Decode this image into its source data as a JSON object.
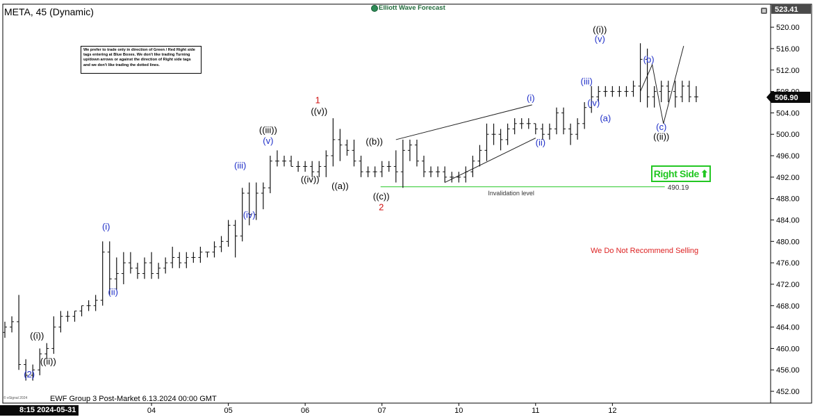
{
  "header": {
    "title": "META, 45 (Dynamic)",
    "brand": "Elliott Wave Forecast"
  },
  "notice": {
    "text": "We prefer to trade only in direction of Green / Red Right side tags entering at Blue Boxes. We don't like trading Turning up/down arrows or against the direction of Right side tags and we don't like trading the dotted lines."
  },
  "badges": {
    "right_side": "Right Side",
    "right_side_color": "#22c722",
    "no_sell": "We Do Not Recommend Selling",
    "no_sell_color": "#dd2222"
  },
  "footer": {
    "caption": "EWF Group 3 Post-Market 6.13.2024 00:00 GMT",
    "copyright": "© eSignal 2024",
    "first_date": "8:15 2024-05-31"
  },
  "chart_data": {
    "type": "bar",
    "chart_style": "ohlc",
    "symbol": "META",
    "interval": "45",
    "y_axis_side": "right",
    "ylim": [
      450,
      524
    ],
    "yticks": [
      452,
      456,
      460,
      464,
      468,
      472,
      476,
      480,
      484,
      488,
      492,
      496,
      500,
      504,
      508,
      512,
      516,
      520
    ],
    "ytick_labels": [
      "452.00",
      "456.00",
      "460.00",
      "464.00",
      "468.00",
      "472.00",
      "476.00",
      "480.00",
      "484.00",
      "488.00",
      "492.00",
      "496.00",
      "500.00",
      "504.00",
      "508.00",
      "512.00",
      "516.00",
      "520.00"
    ],
    "xlim": [
      0,
      111
    ],
    "x_labels": [
      {
        "label": "04",
        "x": 21
      },
      {
        "label": "05",
        "x": 32
      },
      {
        "label": "06",
        "x": 43
      },
      {
        "label": "07",
        "x": 54
      },
      {
        "label": "10",
        "x": 65
      },
      {
        "label": "11",
        "x": 76
      },
      {
        "label": "12",
        "x": 87
      }
    ],
    "price_labels": [
      {
        "text": "523.41",
        "value": 523.41,
        "style": "dark"
      },
      {
        "text": "506.90",
        "value": 506.9,
        "style": "flag"
      }
    ],
    "bars": [
      [
        463,
        465,
        462,
        464
      ],
      [
        464,
        466,
        463,
        465
      ],
      [
        465,
        470,
        456,
        457
      ],
      [
        457,
        458,
        454,
        455
      ],
      [
        455,
        457,
        454,
        456
      ],
      [
        456,
        460,
        455,
        459
      ],
      [
        459,
        461,
        458,
        460
      ],
      [
        460,
        466,
        459,
        464
      ],
      [
        464,
        467,
        463,
        466
      ],
      [
        466,
        467,
        465,
        466
      ],
      [
        466,
        467,
        465,
        467
      ],
      [
        467,
        468,
        466,
        468
      ],
      [
        468,
        469,
        467,
        468
      ],
      [
        468,
        470,
        467,
        469
      ],
      [
        469,
        480,
        468,
        478
      ],
      [
        478,
        480,
        470,
        473
      ],
      [
        473,
        477,
        471,
        474
      ],
      [
        474,
        478,
        472,
        476
      ],
      [
        476,
        478,
        474,
        475
      ],
      [
        475,
        476,
        473,
        474
      ],
      [
        474,
        477,
        473,
        476
      ],
      [
        476,
        478,
        473,
        474
      ],
      [
        474,
        476,
        473,
        475
      ],
      [
        475,
        477,
        474,
        476
      ],
      [
        476,
        479,
        475,
        477
      ],
      [
        477,
        478,
        475,
        476
      ],
      [
        476,
        478,
        475,
        477
      ],
      [
        477,
        478,
        476,
        477
      ],
      [
        477,
        479,
        476,
        478
      ],
      [
        478,
        478,
        477,
        478
      ],
      [
        478,
        480,
        477,
        479
      ],
      [
        479,
        481,
        478,
        480
      ],
      [
        480,
        484,
        479,
        483
      ],
      [
        483,
        484,
        477,
        481
      ],
      [
        481,
        490,
        480,
        489
      ],
      [
        489,
        491,
        483,
        485
      ],
      [
        485,
        491,
        484,
        489
      ],
      [
        489,
        491,
        486,
        490
      ],
      [
        490,
        496,
        489,
        495
      ],
      [
        495,
        497,
        494,
        495
      ],
      [
        495,
        496,
        494,
        495
      ],
      [
        495,
        496,
        494,
        494
      ],
      [
        494,
        495,
        493,
        494
      ],
      [
        494,
        495,
        493,
        494
      ],
      [
        494,
        495,
        492,
        493
      ],
      [
        493,
        495,
        492,
        494
      ],
      [
        494,
        497,
        492,
        496
      ],
      [
        496,
        503,
        494,
        499
      ],
      [
        499,
        501,
        495,
        498
      ],
      [
        498,
        499,
        496,
        497
      ],
      [
        497,
        499,
        494,
        495
      ],
      [
        495,
        496,
        492,
        493
      ],
      [
        493,
        494,
        492,
        493
      ],
      [
        493,
        494,
        492,
        493
      ],
      [
        493,
        495,
        492,
        494
      ],
      [
        494,
        495,
        493,
        494
      ],
      [
        494,
        497,
        491,
        493
      ],
      [
        493,
        499,
        490,
        497
      ],
      [
        497,
        499,
        495,
        498
      ],
      [
        498,
        499,
        494,
        495
      ],
      [
        495,
        496,
        492,
        493
      ],
      [
        493,
        494,
        492,
        493
      ],
      [
        493,
        494,
        492,
        493
      ],
      [
        493,
        494,
        491,
        492
      ],
      [
        492,
        493,
        491,
        492
      ],
      [
        492,
        493,
        491,
        492
      ],
      [
        492,
        494,
        491,
        493
      ],
      [
        493,
        496,
        492,
        495
      ],
      [
        495,
        498,
        494,
        497
      ],
      [
        497,
        502,
        495,
        500
      ],
      [
        500,
        502,
        498,
        500
      ],
      [
        500,
        501,
        497,
        499
      ],
      [
        499,
        502,
        498,
        501
      ],
      [
        501,
        503,
        500,
        502
      ],
      [
        502,
        503,
        501,
        502
      ],
      [
        502,
        503,
        501,
        502
      ],
      [
        502,
        502,
        500,
        501
      ],
      [
        501,
        502,
        499,
        500
      ],
      [
        500,
        502,
        499,
        501
      ],
      [
        501,
        505,
        500,
        504
      ],
      [
        504,
        505,
        500,
        501
      ],
      [
        501,
        502,
        498,
        500
      ],
      [
        500,
        503,
        499,
        502
      ],
      [
        502,
        506,
        501,
        505
      ],
      [
        505,
        509,
        504,
        507
      ],
      [
        507,
        509,
        506,
        508
      ],
      [
        508,
        509,
        507,
        508
      ],
      [
        508,
        509,
        507,
        508
      ],
      [
        508,
        509,
        507,
        508
      ],
      [
        508,
        509,
        507,
        508
      ],
      [
        508,
        510,
        507,
        509
      ],
      [
        509,
        517,
        506,
        514
      ],
      [
        514,
        516,
        505,
        507
      ],
      [
        507,
        509,
        505,
        508
      ],
      [
        508,
        510,
        506,
        509
      ],
      [
        509,
        510,
        506,
        508
      ],
      [
        508,
        510,
        505,
        507
      ],
      [
        507,
        510,
        506,
        509
      ],
      [
        509,
        510,
        506,
        507
      ],
      [
        507,
        509,
        506,
        507
      ]
    ],
    "wave_labels": [
      {
        "text": "(2)",
        "x": 3.5,
        "y": 454.6,
        "color": "#1f2fc8"
      },
      {
        "text": "((i))",
        "x": 4.6,
        "y": 461.8,
        "color": "#000000"
      },
      {
        "text": "((ii))",
        "x": 6.2,
        "y": 457.0,
        "color": "#000000"
      },
      {
        "text": "(i)",
        "x": 14.5,
        "y": 482.2,
        "color": "#1f2fc8"
      },
      {
        "text": "(ii)",
        "x": 15.5,
        "y": 470.0,
        "color": "#1f2fc8"
      },
      {
        "text": "(iii)",
        "x": 33.7,
        "y": 493.6,
        "color": "#1f2fc8"
      },
      {
        "text": "(iv)",
        "x": 35.0,
        "y": 484.4,
        "color": "#1f2fc8"
      },
      {
        "text": "(v)",
        "x": 37.7,
        "y": 498.2,
        "color": "#1f2fc8"
      },
      {
        "text": "((iii))",
        "x": 37.7,
        "y": 500.2,
        "color": "#000000"
      },
      {
        "text": "((iv))",
        "x": 43.7,
        "y": 491.0,
        "color": "#000000"
      },
      {
        "text": "((v))",
        "x": 45.0,
        "y": 503.7,
        "color": "#000000"
      },
      {
        "text": "1",
        "x": 44.8,
        "y": 505.8,
        "color": "#d01010"
      },
      {
        "text": "((a))",
        "x": 48.0,
        "y": 489.8,
        "color": "#000000"
      },
      {
        "text": "((b))",
        "x": 52.9,
        "y": 498.1,
        "color": "#000000"
      },
      {
        "text": "((c))",
        "x": 53.9,
        "y": 487.8,
        "color": "#000000"
      },
      {
        "text": "2",
        "x": 53.9,
        "y": 485.8,
        "color": "#d01010"
      },
      {
        "text": "(i)",
        "x": 75.3,
        "y": 506.2,
        "color": "#1f2fc8"
      },
      {
        "text": "(ii)",
        "x": 76.7,
        "y": 497.9,
        "color": "#1f2fc8"
      },
      {
        "text": "(iii)",
        "x": 83.3,
        "y": 509.3,
        "color": "#1f2fc8"
      },
      {
        "text": "(iv)",
        "x": 84.3,
        "y": 505.3,
        "color": "#1f2fc8"
      },
      {
        "text": "(v)",
        "x": 85.2,
        "y": 517.2,
        "color": "#1f2fc8"
      },
      {
        "text": "((i))",
        "x": 85.2,
        "y": 519.0,
        "color": "#000000"
      },
      {
        "text": "(a)",
        "x": 86.0,
        "y": 502.4,
        "color": "#1f2fc8"
      },
      {
        "text": "(b)",
        "x": 92.2,
        "y": 513.4,
        "color": "#1f2fc8"
      },
      {
        "text": "(c)",
        "x": 94.0,
        "y": 500.8,
        "color": "#1f2fc8"
      },
      {
        "text": "((ii))",
        "x": 94.0,
        "y": 499.0,
        "color": "#000000"
      }
    ],
    "wedge_lines": [
      [
        [
          56,
          499
        ],
        [
          75.5,
          505.5
        ]
      ],
      [
        [
          63,
          491
        ],
        [
          76,
          499.3
        ]
      ]
    ],
    "projection": [
      [
        91,
        508
      ],
      [
        92.7,
        513
      ],
      [
        94.3,
        502
      ],
      [
        97.2,
        516.5
      ]
    ],
    "invalidation": {
      "value": 490.19,
      "label": "490.19",
      "text": "Invalidation level",
      "x_start": 53.8,
      "x_end": 94.5,
      "color": "#22c722"
    }
  }
}
